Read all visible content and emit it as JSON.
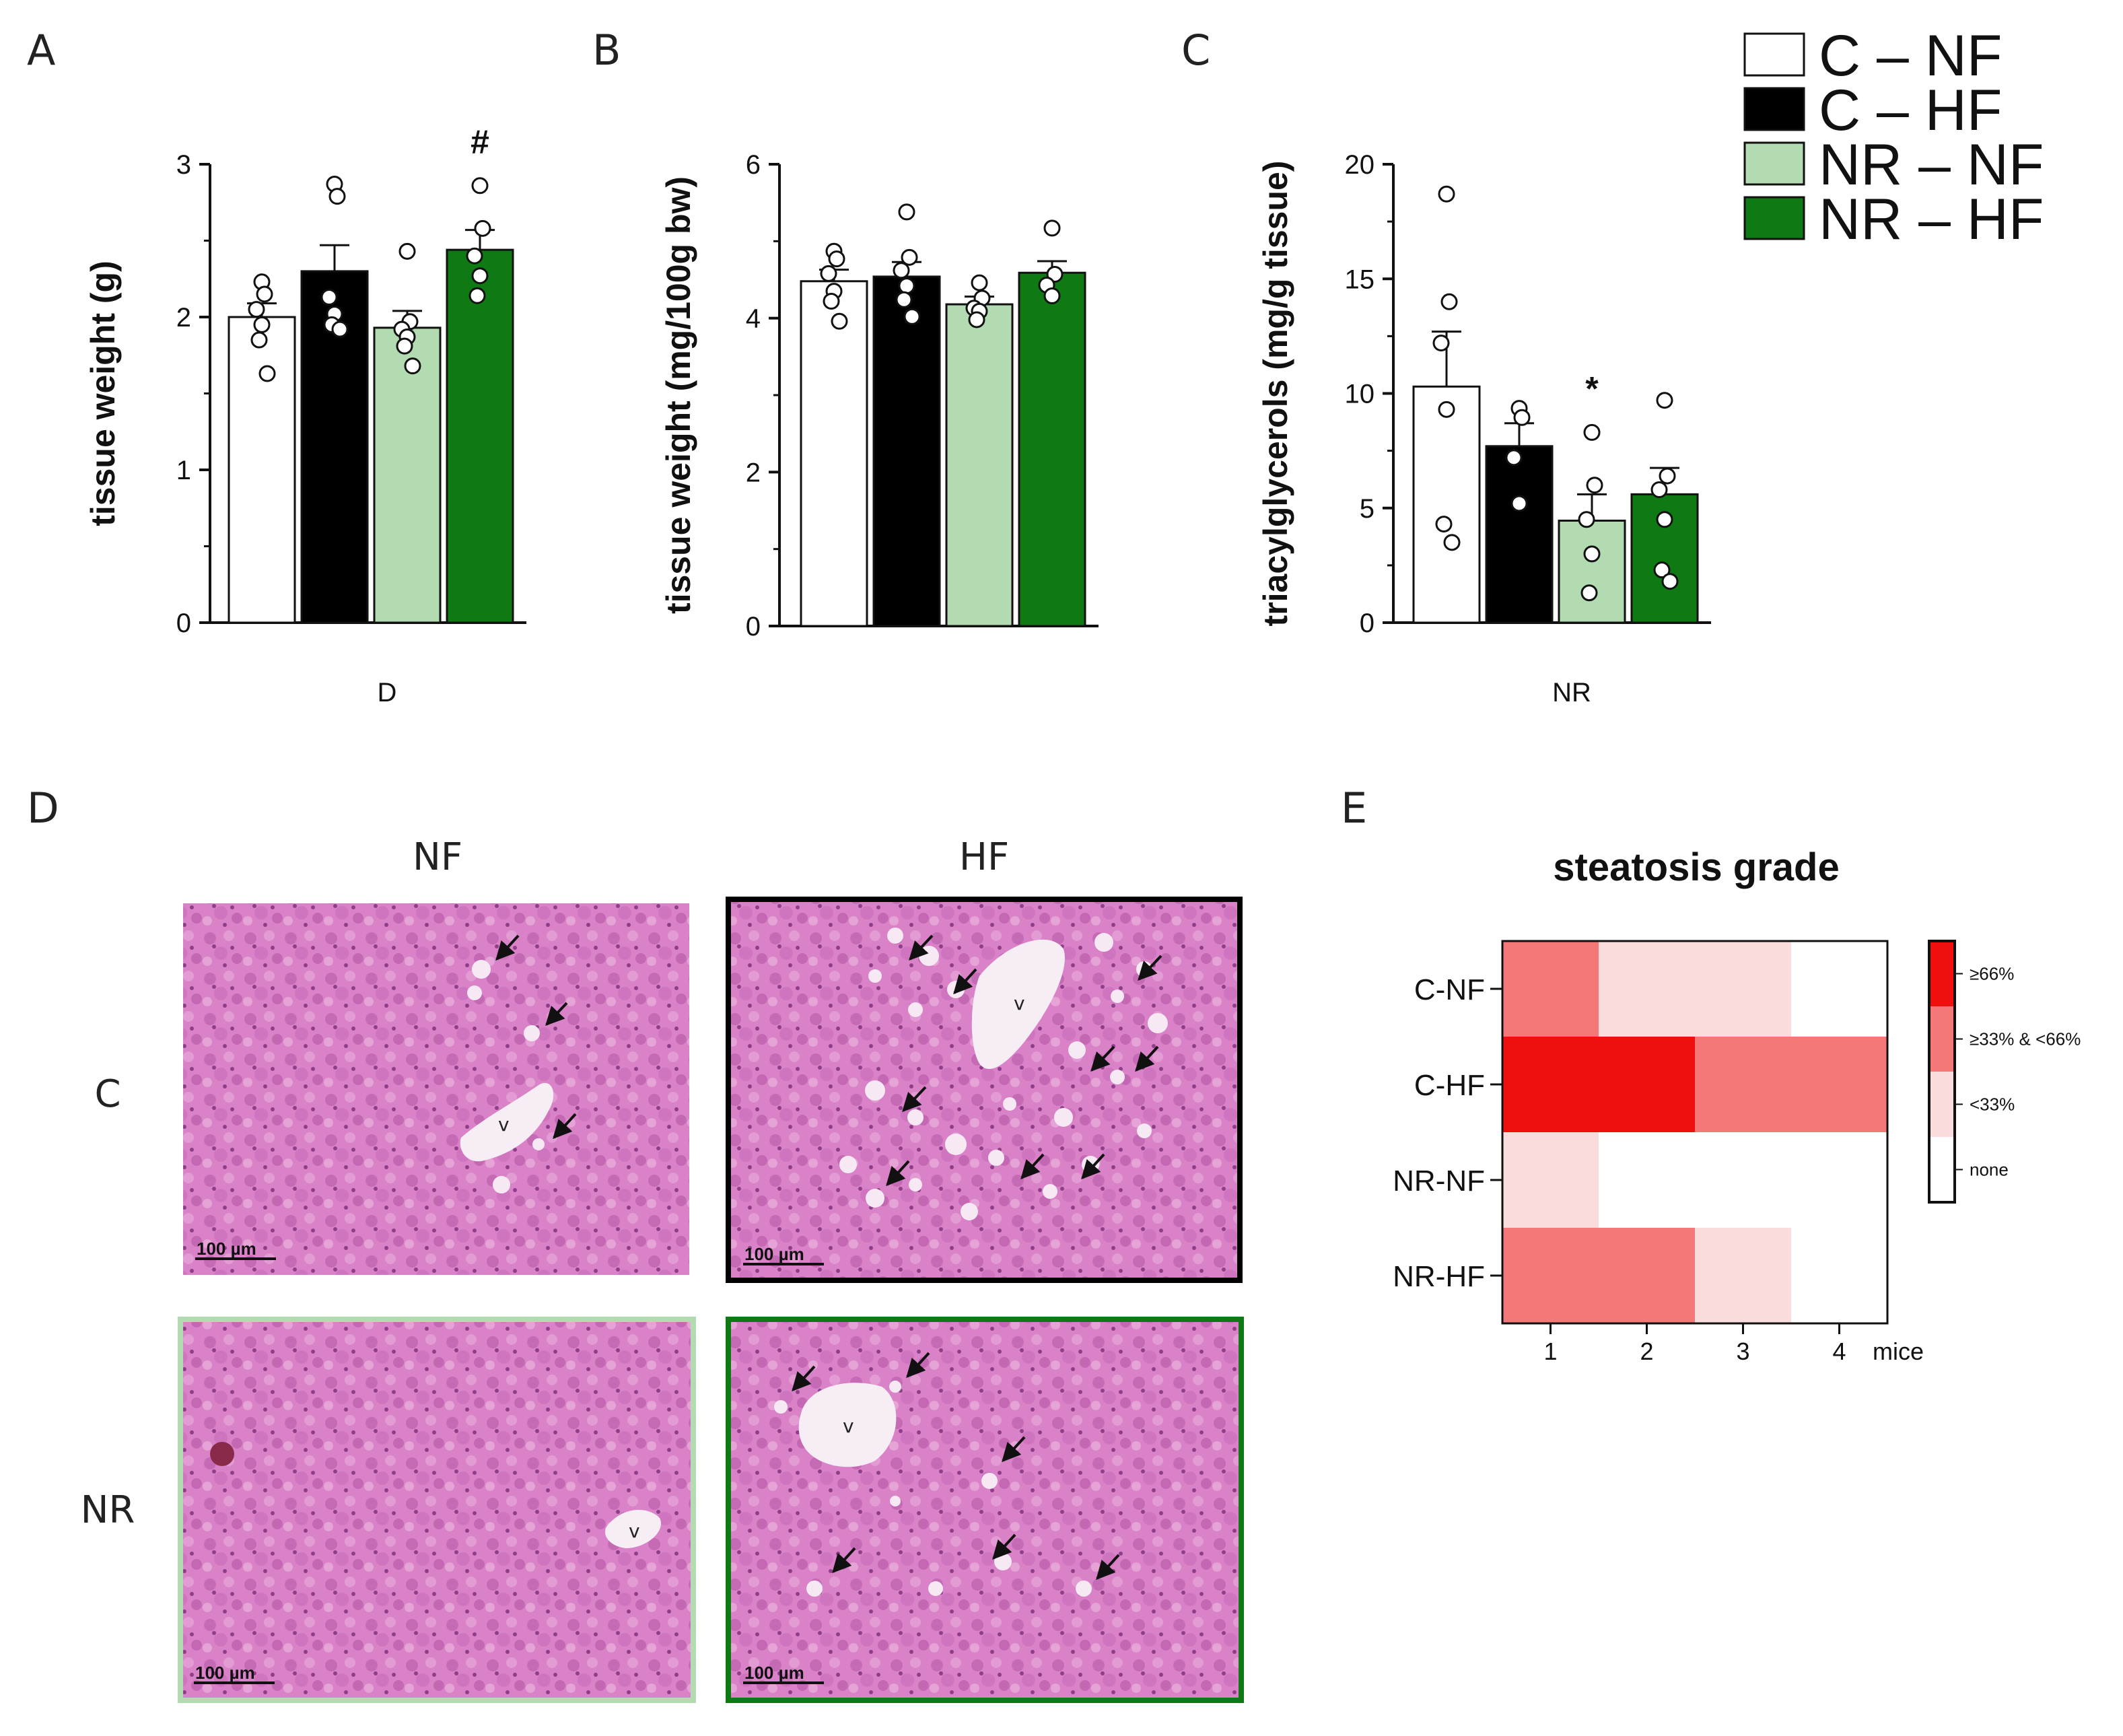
{
  "panel_labels": {
    "A": "A",
    "B": "B",
    "C": "C",
    "D": "D",
    "E": "E"
  },
  "chart_data": [
    {
      "type": "bar",
      "panel": "A",
      "title": "",
      "ylabel": "tissue weight (g)",
      "xlabel": "D",
      "ylim": [
        0,
        3
      ],
      "yticks": [
        "0",
        "1",
        "2",
        "3"
      ],
      "categories": [
        "C – NF",
        "C – HF",
        "NR – NF",
        "NR – HF"
      ],
      "values": [
        2.0,
        2.3,
        1.93,
        2.44
      ],
      "errors": [
        0.09,
        0.17,
        0.11,
        0.13
      ],
      "points": [
        [
          2.23,
          2.15,
          2.05,
          1.95,
          1.85,
          1.63
        ],
        [
          2.87,
          2.79,
          2.13,
          2.02,
          1.95,
          1.92
        ],
        [
          2.43,
          1.97,
          1.92,
          1.87,
          1.81,
          1.68
        ],
        [
          2.86,
          2.58,
          2.4,
          2.27,
          2.14
        ]
      ],
      "annotations": [
        "",
        "",
        "",
        "#"
      ]
    },
    {
      "type": "bar",
      "panel": "B",
      "title": "",
      "ylabel": "tissue weight (mg/100g bw)",
      "xlabel": "",
      "ylim": [
        0,
        6
      ],
      "yticks": [
        "0",
        "2",
        "4",
        "6"
      ],
      "categories": [
        "C – NF",
        "C – HF",
        "NR – NF",
        "NR – HF"
      ],
      "values": [
        4.48,
        4.54,
        4.18,
        4.59
      ],
      "errors": [
        0.15,
        0.19,
        0.1,
        0.15
      ],
      "points": [
        [
          4.87,
          4.77,
          4.58,
          4.35,
          4.22,
          3.96
        ],
        [
          5.38,
          4.79,
          4.62,
          4.42,
          4.24,
          4.02
        ],
        [
          4.46,
          4.26,
          4.13,
          4.09,
          3.98
        ],
        [
          5.17,
          4.57,
          4.43,
          4.29
        ]
      ],
      "annotations": [
        "",
        "",
        "",
        ""
      ]
    },
    {
      "type": "bar",
      "panel": "C",
      "title": "",
      "ylabel": "triacylglycerols (mg/g tissue)",
      "xlabel": "NR",
      "ylim": [
        0,
        20
      ],
      "yticks": [
        "0",
        "5",
        "10",
        "15",
        "20"
      ],
      "categories": [
        "C – NF",
        "C – HF",
        "NR – NF",
        "NR – HF"
      ],
      "values": [
        10.3,
        7.7,
        4.45,
        5.6
      ],
      "errors": [
        2.4,
        1.0,
        1.15,
        1.15
      ],
      "points": [
        [
          18.7,
          14.0,
          12.2,
          9.3,
          4.3,
          3.5
        ],
        [
          9.35,
          8.95,
          7.2,
          5.2
        ],
        [
          8.3,
          6.0,
          4.5,
          3.0,
          1.3
        ],
        [
          9.7,
          6.4,
          5.8,
          4.5,
          2.3,
          1.8
        ]
      ],
      "annotations": [
        "",
        "",
        "*",
        ""
      ]
    },
    {
      "type": "heatmap",
      "panel": "E",
      "title": "steatosis grade",
      "rows": [
        "C-NF",
        "C-HF",
        "NR-NF",
        "NR-HF"
      ],
      "columns": [
        "1",
        "2",
        "3",
        "4"
      ],
      "xlabel": "mice",
      "grades": [
        [
          2,
          1,
          1,
          0
        ],
        [
          3,
          3,
          2,
          2
        ],
        [
          1,
          0,
          0,
          0
        ],
        [
          2,
          2,
          1,
          0
        ]
      ],
      "scale_labels": [
        "≥66%",
        "≥33% & <66%",
        "<33%",
        "none"
      ],
      "scale_colors": [
        "#ef0f0f",
        "#f47878",
        "#fbdcdc",
        "#ffffff"
      ]
    }
  ],
  "legend": [
    {
      "label": "C – NF",
      "color": "#ffffff"
    },
    {
      "label": "C – HF",
      "color": "#000000"
    },
    {
      "label": "NR – NF",
      "color": "#b3dbb1"
    },
    {
      "label": "NR – HF",
      "color": "#0f7a14"
    }
  ],
  "histology": {
    "col_labels": [
      "NF",
      "HF"
    ],
    "row_labels": [
      "C",
      "NR"
    ],
    "scale_bar": "100 µm",
    "vessel_label": "v",
    "frame_colors": [
      "none",
      "#000000",
      "#b3dbb1",
      "#0f7a14"
    ]
  }
}
